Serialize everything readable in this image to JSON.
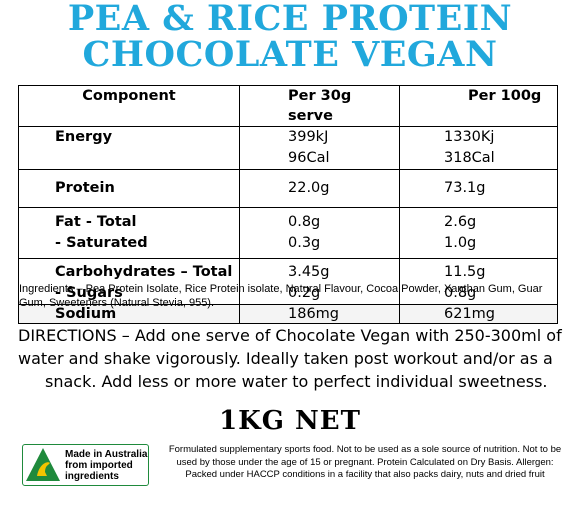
{
  "header": {
    "title_line1": "PEA & RICE PROTEIN",
    "title_line2": "CHOCOLATE VEGAN",
    "brand_color": "#21a8dc"
  },
  "nutrition_table": {
    "columns": [
      "Component",
      "Per 30g serve",
      "Per 100g"
    ],
    "rows": [
      {
        "component": [
          "Energy",
          ""
        ],
        "per_serve": [
          "399kJ",
          "96Cal"
        ],
        "per_100g": [
          "1330Kj",
          "318Cal"
        ]
      },
      {
        "component": [
          "Protein"
        ],
        "per_serve": [
          "22.0g"
        ],
        "per_100g": [
          "73.1g"
        ]
      },
      {
        "component": [
          "Fat - Total",
          " - Saturated"
        ],
        "per_serve": [
          "0.8g",
          "0.3g"
        ],
        "per_100g": [
          "2.6g",
          "1.0g"
        ]
      },
      {
        "component": [
          "Carbohydrates – Total",
          " - Sugars"
        ],
        "per_serve": [
          "3.45g",
          "0.2g"
        ],
        "per_100g": [
          "11.5g",
          "0.8g"
        ]
      },
      {
        "component": [
          "Sodium"
        ],
        "per_serve": [
          "186mg"
        ],
        "per_100g": [
          "621mg"
        ]
      }
    ]
  },
  "ingredients": "Ingredients – Pea Protein Isolate, Rice Protein isolate, Natural Flavour, Cocoa Powder, Xanthan Gum, Guar Gum, Sweeteners (Natural Stevia, 955).",
  "directions": {
    "line1": "DIRECTIONS – Add one serve of Chocolate Vegan with 250-300ml of",
    "line2": "water and shake vigorously.  Ideally taken post workout and/or as a",
    "line3": "snack. Add less or more water to perfect individual sweetness."
  },
  "net_weight": "1KG NET",
  "origin_logo": {
    "icon": "australian-made-kangaroo-triangle-icon",
    "line1": "Made in Australia",
    "line2": "from imported",
    "line3": "ingredients",
    "color": "#1f8a3c"
  },
  "fine_print": "Formulated supplementary sports food. Not to be used as a sole source of nutrition. Not to be used by those under the age of 15 or pregnant. Protein Calculated on Dry Basis. Allergen: Packed under HACCP conditions in a facility that also packs dairy, nuts and dried fruit"
}
